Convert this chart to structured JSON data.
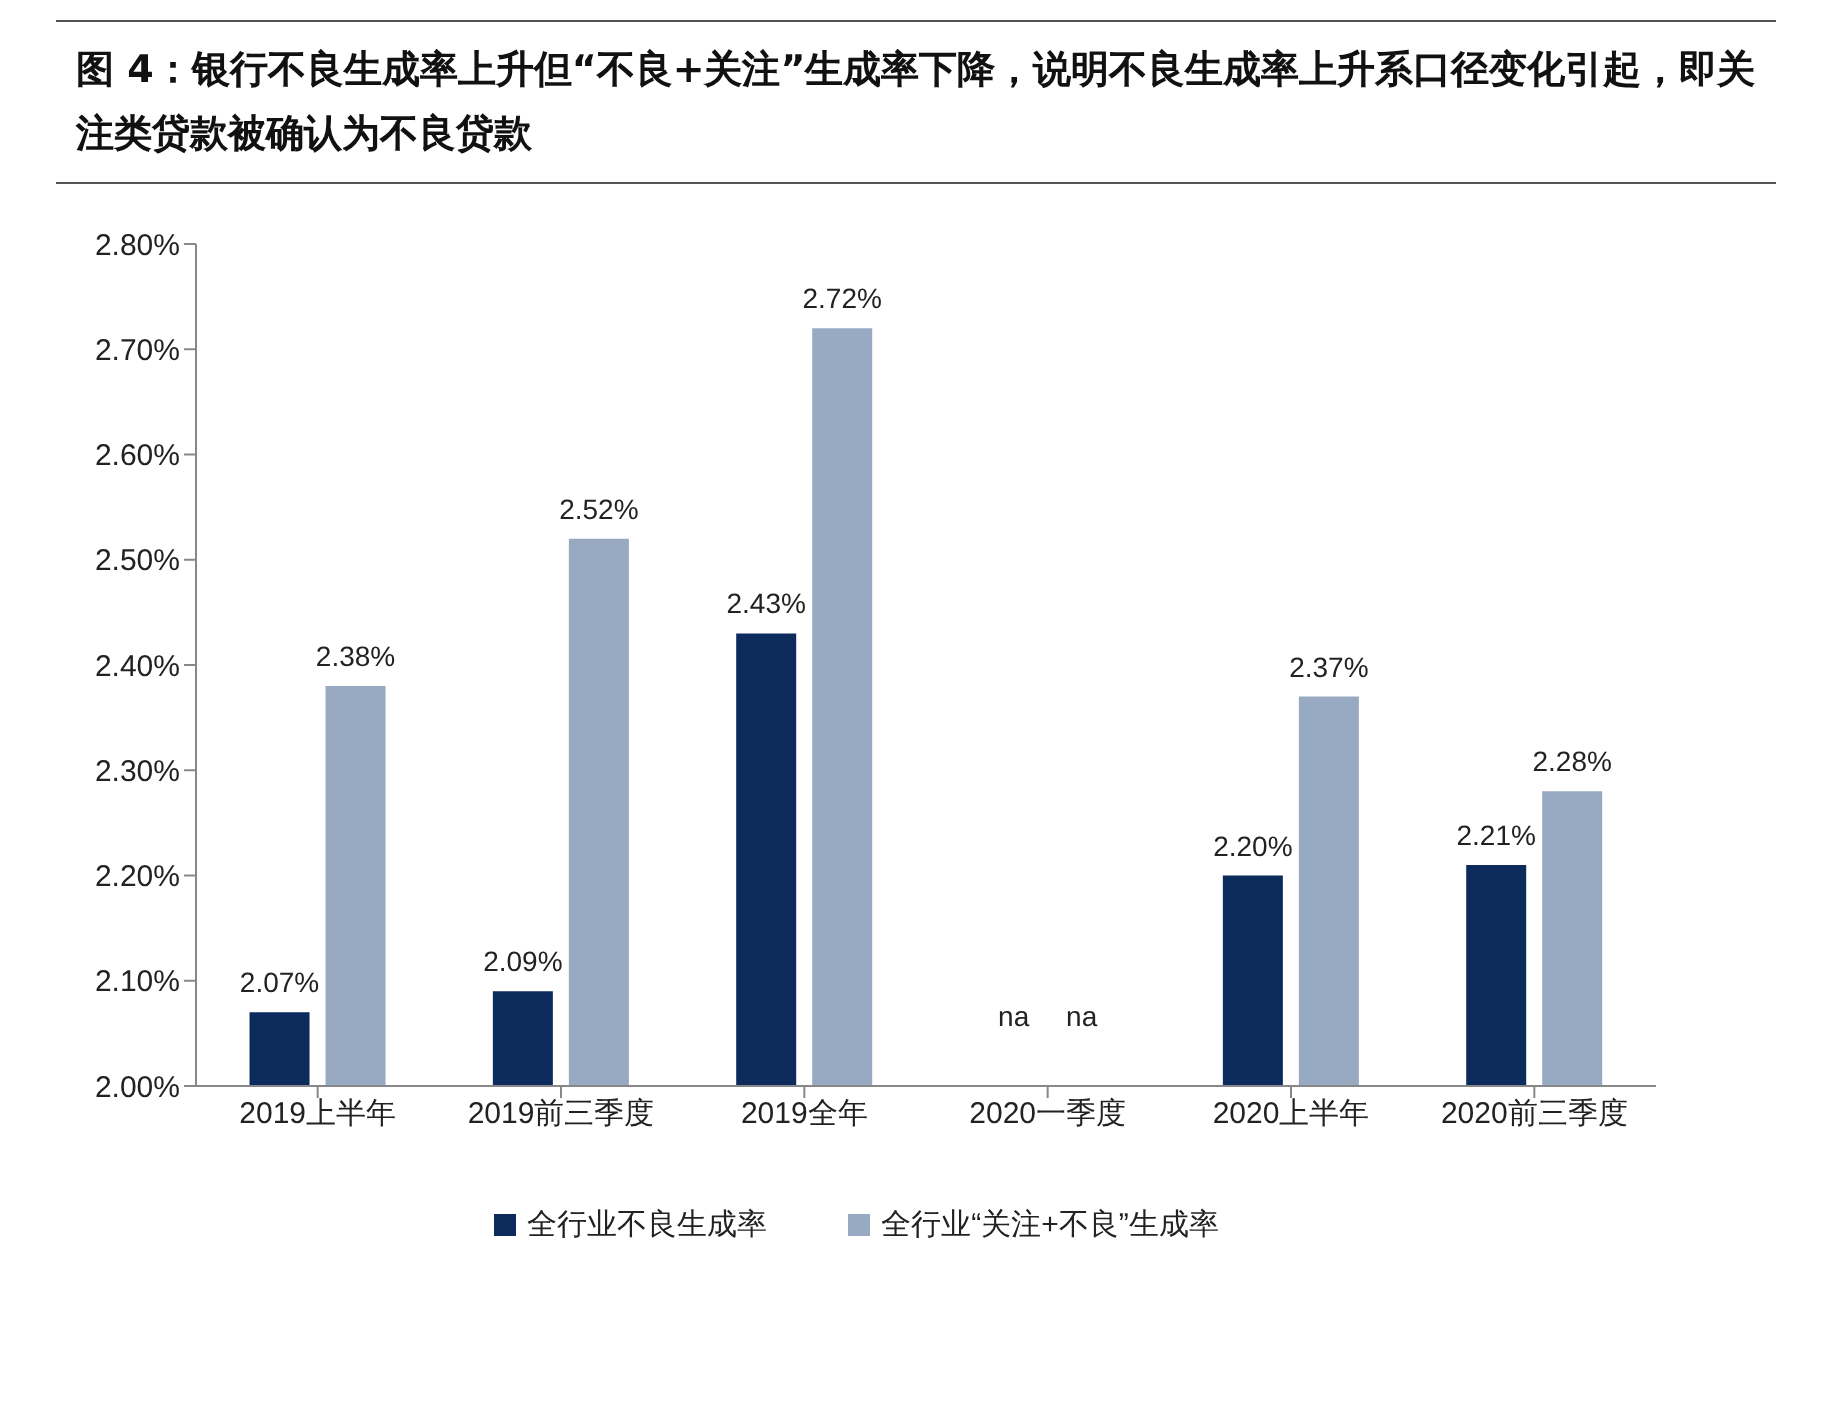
{
  "chart_data": {
    "type": "bar",
    "title": "图 4：银行不良生成率上升但“不良+关注”生成率下降，说明不良生成率上升系口径变化引起，即关注类贷款被确认为不良贷款",
    "categories": [
      "2019上半年",
      "2019前三季度",
      "2019全年",
      "2020一季度",
      "2020上半年",
      "2020前三季度"
    ],
    "series": [
      {
        "name": "全行业不良生成率",
        "color": "#0d2a5c",
        "values": [
          2.07,
          2.09,
          2.43,
          null,
          2.2,
          2.21
        ],
        "value_labels": [
          "2.07%",
          "2.09%",
          "2.43%",
          "na",
          "2.20%",
          "2.21%"
        ]
      },
      {
        "name": "全行业“关注+不良”生成率",
        "color": "#98a9c2",
        "values": [
          2.38,
          2.52,
          2.72,
          null,
          2.37,
          2.28
        ],
        "value_labels": [
          "2.38%",
          "2.52%",
          "2.72%",
          "na",
          "2.37%",
          "2.28%"
        ]
      }
    ],
    "ylim": [
      2,
      2.8
    ],
    "yticks": [
      {
        "value": 2,
        "label": "2.00%"
      },
      {
        "value": 2.1,
        "label": "2.10%"
      },
      {
        "value": 2.2,
        "label": "2.20%"
      },
      {
        "value": 2.3,
        "label": "2.30%"
      },
      {
        "value": 2.4,
        "label": "2.40%"
      },
      {
        "value": 2.5,
        "label": "2.50%"
      },
      {
        "value": 2.6,
        "label": "2.60%"
      },
      {
        "value": 2.7,
        "label": "2.70%"
      },
      {
        "value": 2.8,
        "label": "2.80%"
      }
    ],
    "grid": false,
    "legend": "bottom"
  }
}
